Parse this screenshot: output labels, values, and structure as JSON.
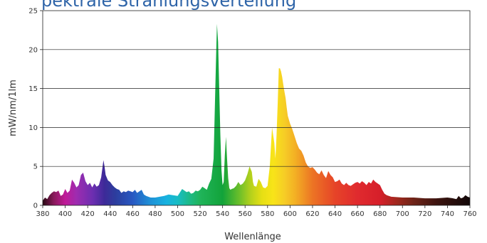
{
  "chart_data": {
    "type": "area",
    "title_partial": "pektrale Strahlungsverteilung",
    "xlabel": "Wellenlänge",
    "ylabel": "mW/nm/1lm",
    "xlim": [
      380,
      760
    ],
    "ylim": [
      0,
      25
    ],
    "xticks": [
      380,
      400,
      420,
      440,
      460,
      480,
      500,
      520,
      540,
      560,
      580,
      600,
      620,
      640,
      660,
      680,
      700,
      720,
      740,
      760
    ],
    "yticks": [
      0,
      5,
      10,
      15,
      20,
      25
    ],
    "grid": "horizontal",
    "colors": {
      "title": "#2e64a8",
      "axis_text": "#333333",
      "grid": "#222222"
    },
    "series": [
      {
        "x": [
          380,
          382,
          384,
          386,
          388,
          390,
          392,
          394,
          396,
          398,
          400,
          402,
          404,
          406,
          408,
          410,
          412,
          414,
          416,
          418,
          420,
          422,
          424,
          426,
          428,
          430,
          432,
          434,
          435,
          436,
          438,
          440,
          442,
          444,
          446,
          448,
          450,
          452,
          454,
          456,
          458,
          460,
          462,
          464,
          466,
          468,
          470,
          472,
          474,
          476,
          478,
          480,
          484,
          488,
          492,
          496,
          500,
          504,
          508,
          510,
          512,
          514,
          516,
          518,
          520,
          522,
          524,
          526,
          528,
          530,
          532,
          533,
          534,
          535,
          536,
          537,
          538,
          539,
          540,
          541,
          542,
          543,
          544,
          545,
          546,
          547,
          548,
          550,
          552,
          554,
          556,
          558,
          560,
          562,
          564,
          566,
          567,
          568,
          570,
          572,
          574,
          576,
          578,
          580,
          582,
          584,
          586,
          587,
          588,
          589,
          590,
          591,
          592,
          593,
          594,
          595,
          596,
          597,
          598,
          600,
          602,
          604,
          606,
          608,
          610,
          612,
          614,
          616,
          618,
          620,
          622,
          624,
          626,
          628,
          630,
          632,
          634,
          636,
          638,
          640,
          642,
          644,
          646,
          648,
          650,
          652,
          654,
          656,
          658,
          660,
          662,
          664,
          666,
          668,
          670,
          672,
          674,
          676,
          678,
          680,
          682,
          684,
          686,
          690,
          700,
          710,
          720,
          730,
          740,
          745,
          748,
          750,
          752,
          754,
          756,
          758,
          760
        ],
        "y": [
          0.6,
          1.0,
          0.8,
          1.3,
          1.6,
          1.8,
          1.7,
          1.9,
          1.2,
          1.4,
          2.1,
          1.6,
          1.9,
          3.3,
          2.9,
          2.3,
          2.6,
          3.9,
          4.2,
          3.1,
          2.6,
          2.9,
          2.3,
          2.8,
          2.4,
          2.6,
          3.6,
          5.8,
          5.0,
          3.9,
          3.2,
          3.0,
          2.6,
          2.3,
          2.1,
          2.0,
          1.6,
          1.8,
          1.7,
          1.9,
          1.8,
          1.7,
          2.0,
          1.6,
          1.8,
          2.0,
          1.4,
          1.2,
          1.1,
          1.0,
          1.0,
          1.0,
          1.1,
          1.2,
          1.4,
          1.3,
          1.2,
          2.1,
          1.7,
          1.8,
          1.5,
          1.6,
          1.9,
          1.8,
          2.0,
          2.4,
          2.2,
          2.0,
          2.8,
          3.4,
          6.0,
          12.0,
          18.0,
          23.3,
          21.0,
          15.0,
          9.0,
          4.5,
          2.6,
          3.0,
          6.5,
          8.8,
          6.0,
          3.5,
          2.2,
          2.0,
          2.1,
          2.2,
          2.5,
          3.0,
          2.6,
          2.8,
          3.2,
          4.0,
          5.0,
          4.3,
          3.0,
          2.5,
          2.4,
          3.4,
          3.0,
          2.3,
          2.2,
          2.5,
          5.0,
          10.0,
          8.0,
          6.0,
          9.0,
          13.0,
          17.6,
          17.6,
          17.2,
          16.5,
          15.5,
          14.6,
          13.8,
          12.6,
          11.5,
          10.5,
          9.8,
          8.9,
          8.0,
          7.3,
          7.0,
          6.4,
          5.5,
          5.0,
          4.8,
          4.9,
          4.6,
          4.2,
          4.0,
          4.5,
          3.9,
          3.5,
          4.4,
          3.9,
          3.6,
          3.0,
          3.1,
          3.3,
          2.8,
          2.6,
          2.9,
          2.6,
          2.5,
          2.7,
          2.9,
          3.0,
          2.8,
          3.1,
          2.9,
          2.6,
          3.0,
          2.8,
          3.3,
          3.0,
          2.8,
          2.6,
          2.0,
          1.5,
          1.3,
          1.1,
          1.0,
          1.0,
          0.9,
          0.9,
          1.0,
          0.9,
          0.8,
          1.2,
          0.9,
          1.0,
          1.3,
          1.1,
          1.0
        ]
      }
    ]
  }
}
